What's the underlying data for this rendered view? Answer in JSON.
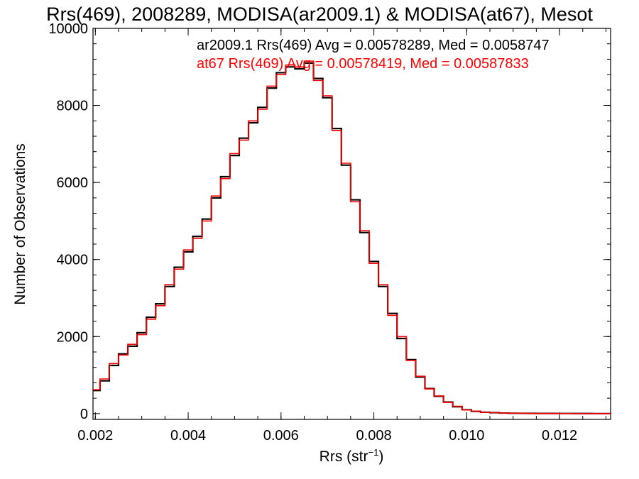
{
  "chart_data": {
    "type": "line",
    "style": "step histogram",
    "title": "Rrs(469), 2008289, MODISA(ar2009.1) & MODISA(at67), Mesot",
    "xlabel": "Rrs (str",
    "xlabel_sup": "−1",
    "xlabel_close": ")",
    "ylabel": "Number of Observations",
    "xlim": [
      0.00195,
      0.0131
    ],
    "ylim": [
      -150,
      10000
    ],
    "x_ticks": [
      {
        "value": 0.002,
        "label": "0.002"
      },
      {
        "value": 0.004,
        "label": "0.004"
      },
      {
        "value": 0.006,
        "label": "0.006"
      },
      {
        "value": 0.008,
        "label": "0.008"
      },
      {
        "value": 0.01,
        "label": "0.010"
      },
      {
        "value": 0.012,
        "label": "0.012"
      }
    ],
    "y_ticks": [
      {
        "value": 0,
        "label": "0"
      },
      {
        "value": 2000,
        "label": "2000"
      },
      {
        "value": 4000,
        "label": "4000"
      },
      {
        "value": 6000,
        "label": "6000"
      },
      {
        "value": 8000,
        "label": "8000"
      },
      {
        "value": 10000,
        "label": "10000"
      }
    ],
    "grid": false,
    "legend_position": "top-right",
    "annotations": [
      {
        "text": "ar2009.1 Rrs(469) Avg = 0.00578289, Med = 0.0058747",
        "color": "#000000"
      },
      {
        "text": "at67 Rrs(469) Avg = 0.00578419, Med = 0.00587833",
        "color": "#ff0000"
      }
    ],
    "series": [
      {
        "name": "ar2009.1",
        "color": "#000000",
        "x": [
          0.00195,
          0.0021,
          0.0023,
          0.0025,
          0.0027,
          0.0029,
          0.0031,
          0.0033,
          0.0035,
          0.0037,
          0.0039,
          0.0041,
          0.0043,
          0.0045,
          0.0047,
          0.0049,
          0.0051,
          0.0053,
          0.0055,
          0.0057,
          0.0059,
          0.0061,
          0.0063,
          0.0065,
          0.0067,
          0.0069,
          0.0071,
          0.0073,
          0.0075,
          0.0077,
          0.0079,
          0.0081,
          0.0083,
          0.0085,
          0.0087,
          0.0089,
          0.0091,
          0.0093,
          0.0095,
          0.0097,
          0.0099,
          0.0101,
          0.0103,
          0.0105,
          0.0107,
          0.0109,
          0.0111,
          0.0113,
          0.0115,
          0.0117,
          0.0119,
          0.0121,
          0.0123,
          0.0125,
          0.0127,
          0.0129,
          0.0131
        ],
        "y": [
          600,
          850,
          1250,
          1550,
          1750,
          2100,
          2500,
          2850,
          3300,
          3800,
          4200,
          4600,
          5050,
          5600,
          6150,
          6700,
          7150,
          7550,
          7950,
          8450,
          8850,
          9000,
          8950,
          9100,
          8700,
          8200,
          7400,
          6450,
          5550,
          4700,
          3950,
          3300,
          2600,
          1950,
          1400,
          950,
          650,
          450,
          300,
          180,
          100,
          60,
          35,
          25,
          15,
          10,
          8,
          6,
          5,
          4,
          3,
          3,
          2,
          2,
          1,
          1,
          0
        ]
      },
      {
        "name": "at67",
        "color": "#ff0000",
        "x": [
          0.00195,
          0.0021,
          0.0023,
          0.0025,
          0.0027,
          0.0029,
          0.0031,
          0.0033,
          0.0035,
          0.0037,
          0.0039,
          0.0041,
          0.0043,
          0.0045,
          0.0047,
          0.0049,
          0.0051,
          0.0053,
          0.0055,
          0.0057,
          0.0059,
          0.0061,
          0.0063,
          0.0065,
          0.0067,
          0.0069,
          0.0071,
          0.0073,
          0.0075,
          0.0077,
          0.0079,
          0.0081,
          0.0083,
          0.0085,
          0.0087,
          0.0089,
          0.0091,
          0.0093,
          0.0095,
          0.0097,
          0.0099,
          0.0101,
          0.0103,
          0.0105,
          0.0107,
          0.0109,
          0.0111,
          0.0113,
          0.0115,
          0.0117,
          0.0119,
          0.0121,
          0.0123,
          0.0125,
          0.0127,
          0.0129,
          0.0131
        ],
        "y": [
          620,
          900,
          1300,
          1520,
          1800,
          2050,
          2450,
          2800,
          3350,
          3750,
          4250,
          4550,
          5000,
          5650,
          6100,
          6750,
          7100,
          7600,
          7900,
          8500,
          8800,
          9050,
          9000,
          9150,
          8650,
          8250,
          7350,
          6500,
          5500,
          4750,
          3900,
          3350,
          2550,
          2000,
          1380,
          970,
          640,
          460,
          290,
          190,
          95,
          65,
          30,
          25,
          14,
          11,
          7,
          6,
          4,
          4,
          3,
          2,
          2,
          1,
          1,
          1,
          0
        ]
      }
    ]
  }
}
